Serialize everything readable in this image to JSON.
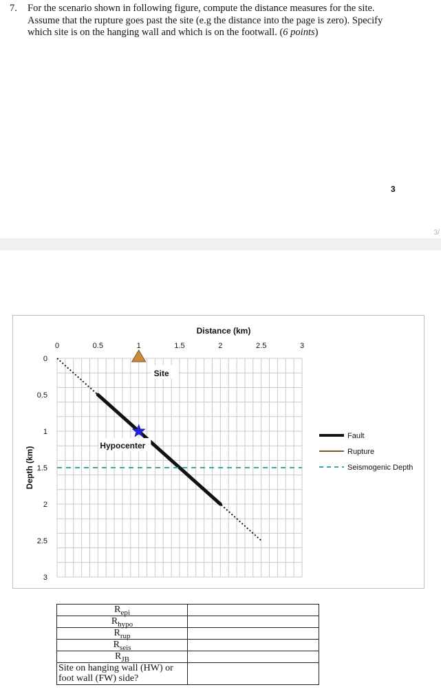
{
  "question": {
    "number": "7.",
    "text": "For the scenario shown in following figure, compute the distance measures for the site. Assume that the rupture goes past the site (e.g the distance into the page is zero). Specify which site is on the hanging wall and which is on the footwall. (",
    "points_label": "6 points",
    "closing": ")"
  },
  "page": {
    "number": "3",
    "indicator": "3/"
  },
  "chart_data": {
    "type": "line",
    "xlabel": "Distance (km)",
    "ylabel": "Depth (km)",
    "xlim": [
      0,
      3
    ],
    "ylim": [
      0,
      3
    ],
    "y_inverted": true,
    "x_axis_position": "top",
    "x_ticks": [
      "0",
      "0.5",
      "1",
      "1.5",
      "2",
      "2.5",
      "3"
    ],
    "y_ticks": [
      "0",
      "0.5",
      "1",
      "1.5",
      "2",
      "2.5",
      "3"
    ],
    "grid": true,
    "legend_position": "right",
    "series": [
      {
        "name": "Fault",
        "style": "dotted",
        "color": "#111111",
        "x": [
          0,
          2.5
        ],
        "y": [
          0,
          2.5
        ]
      },
      {
        "name": "Rupture",
        "style": "solid-thick",
        "color": "#111111",
        "x": [
          0.5,
          2
        ],
        "y": [
          0.5,
          2
        ]
      },
      {
        "name": "Seismogenic Depth",
        "style": "dashed",
        "color": "#3aa5a0",
        "x": [
          0,
          3
        ],
        "y": [
          1.5,
          1.5
        ]
      }
    ],
    "legend": [
      {
        "name": "Fault",
        "color": "#111111",
        "style": "thick"
      },
      {
        "name": "Rupture",
        "color": "#7a5a3a",
        "style": "thin"
      },
      {
        "name": "Seismogenic Depth",
        "color": "#3aa5a0",
        "style": "dashed"
      }
    ],
    "markers": [
      {
        "name": "Site",
        "shape": "triangle",
        "color": "#c98a3c",
        "x": 1.0,
        "y": 0
      },
      {
        "name": "Hypocenter",
        "shape": "star",
        "color": "#2323d6",
        "x": 1.0,
        "y": 1.0
      }
    ],
    "annotations": {
      "site": "Site",
      "hypocenter": "Hypocenter"
    }
  },
  "table": {
    "rows": [
      {
        "main": "R",
        "sub": "epi",
        "value": ""
      },
      {
        "main": "R",
        "sub": "hypo",
        "value": ""
      },
      {
        "main": "R",
        "sub": "rup",
        "value": ""
      },
      {
        "main": "R",
        "sub": "seis",
        "value": ""
      },
      {
        "main": "R",
        "sub": "JB",
        "value": ""
      },
      {
        "main": "Site on hanging wall (HW) or foot wall (FW) side?",
        "sub": "",
        "value": ""
      }
    ]
  }
}
